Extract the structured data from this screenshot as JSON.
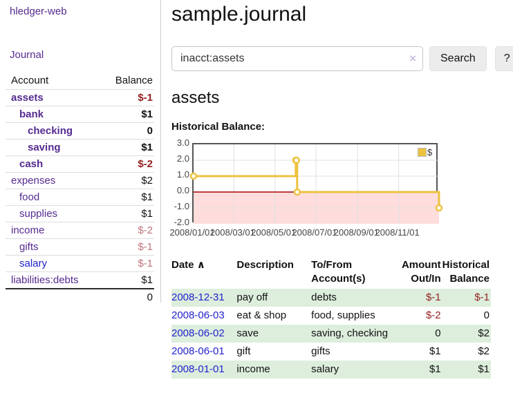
{
  "sidebar": {
    "app_title": "hledger-web",
    "nav": {
      "journal": "Journal"
    },
    "accounts": {
      "header": {
        "account": "Account",
        "balance": "Balance"
      },
      "rows": [
        {
          "name": "assets",
          "balance": "$-1"
        },
        {
          "name": "bank",
          "balance": "$1"
        },
        {
          "name": "checking",
          "balance": "0"
        },
        {
          "name": "saving",
          "balance": "$1"
        },
        {
          "name": "cash",
          "balance": "$-2"
        },
        {
          "name": "expenses",
          "balance": "$2"
        },
        {
          "name": "food",
          "balance": "$1"
        },
        {
          "name": "supplies",
          "balance": "$1"
        },
        {
          "name": "income",
          "balance": "$-2"
        },
        {
          "name": "gifts",
          "balance": "$-1"
        },
        {
          "name": "salary",
          "balance": "$-1"
        },
        {
          "name": "liabilities:debts",
          "balance": "$1"
        }
      ],
      "total": "0"
    }
  },
  "main": {
    "title": "sample.journal",
    "search": {
      "value": "inacct:assets",
      "clear_icon": "×",
      "search_button": "Search",
      "help_button": "?"
    },
    "account_heading": "assets"
  },
  "chart_data": {
    "type": "line",
    "step": true,
    "title": "Historical Balance:",
    "series": [
      {
        "name": "$",
        "color": "#edc240",
        "points": [
          [
            "2008-01-01",
            1
          ],
          [
            "2008-06-01",
            2
          ],
          [
            "2008-06-02",
            2
          ],
          [
            "2008-06-03",
            0
          ],
          [
            "2008-12-31",
            -1
          ]
        ]
      }
    ],
    "x_range": [
      "2008-01-01",
      "2008-12-31"
    ],
    "ylim": [
      -2,
      3
    ],
    "y_ticks": [
      "3.0",
      "2.0",
      "1.0",
      "0.0",
      "-1.0",
      "-2.0"
    ],
    "x_ticks": [
      {
        "date": "2008-01-01",
        "label": "2008/01/01"
      },
      {
        "date": "2008-03-01",
        "label": "2008/03/01"
      },
      {
        "date": "2008-05-01",
        "label": "2008/05/01"
      },
      {
        "date": "2008-07-01",
        "label": "2008/07/01"
      },
      {
        "date": "2008-09-01",
        "label": "2008/09/01"
      },
      {
        "date": "2008-11-01",
        "label": "2008/11/01"
      }
    ],
    "grid": true,
    "grid_color": "#e0e0e0",
    "negative_region_color": "#ffdddd",
    "zero_line_color": "#aa0000",
    "legend": "$",
    "legend_position": "top-right"
  },
  "register": {
    "headers": {
      "date": "Date",
      "sort_indicator": "∧",
      "description": "Description",
      "account": "To/From Account(s)",
      "amount": "Amount Out/In",
      "balance": "Historical Balance"
    },
    "rows": [
      {
        "date": "2008-12-31",
        "description": "pay off",
        "account": "debts",
        "amount": "$-1",
        "balance": "$-1"
      },
      {
        "date": "2008-06-03",
        "description": "eat & shop",
        "account": "food, supplies",
        "amount": "$-2",
        "balance": "0"
      },
      {
        "date": "2008-06-02",
        "description": "save",
        "account": "saving, checking",
        "amount": "0",
        "balance": "$2"
      },
      {
        "date": "2008-06-01",
        "description": "gift",
        "account": "gifts",
        "amount": "$1",
        "balance": "$2"
      },
      {
        "date": "2008-01-01",
        "description": "income",
        "account": "salary",
        "amount": "$1",
        "balance": "$1"
      }
    ]
  },
  "colors": {
    "link_purple": "#552a90",
    "link_blue": "#2222cc",
    "negative_strong": "#941f1f",
    "negative_muted": "#c0737c",
    "row_green": "#ddeedd",
    "chart_gold": "#edc240"
  }
}
